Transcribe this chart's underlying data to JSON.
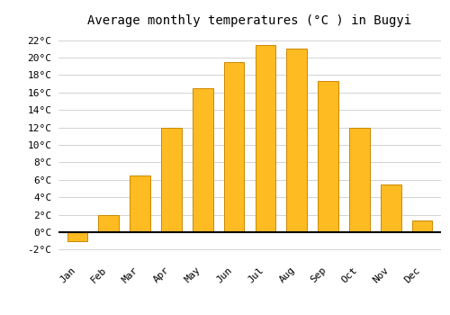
{
  "title": "Average monthly temperatures (°C ) in Bugyi",
  "months": [
    "Jan",
    "Feb",
    "Mar",
    "Apr",
    "May",
    "Jun",
    "Jul",
    "Aug",
    "Sep",
    "Oct",
    "Nov",
    "Dec"
  ],
  "values": [
    -1.0,
    2.0,
    6.5,
    12.0,
    16.5,
    19.5,
    21.5,
    21.0,
    17.3,
    12.0,
    5.5,
    1.3
  ],
  "bar_color": "#FFBB22",
  "bar_edge_color": "#CC8800",
  "background_color": "#FFFFFF",
  "grid_color": "#CCCCCC",
  "ylim": [
    -3,
    23
  ],
  "yticks": [
    -2,
    0,
    2,
    4,
    6,
    8,
    10,
    12,
    14,
    16,
    18,
    20,
    22
  ],
  "title_fontsize": 10,
  "tick_fontsize": 8,
  "font_family": "monospace",
  "bar_width": 0.65
}
